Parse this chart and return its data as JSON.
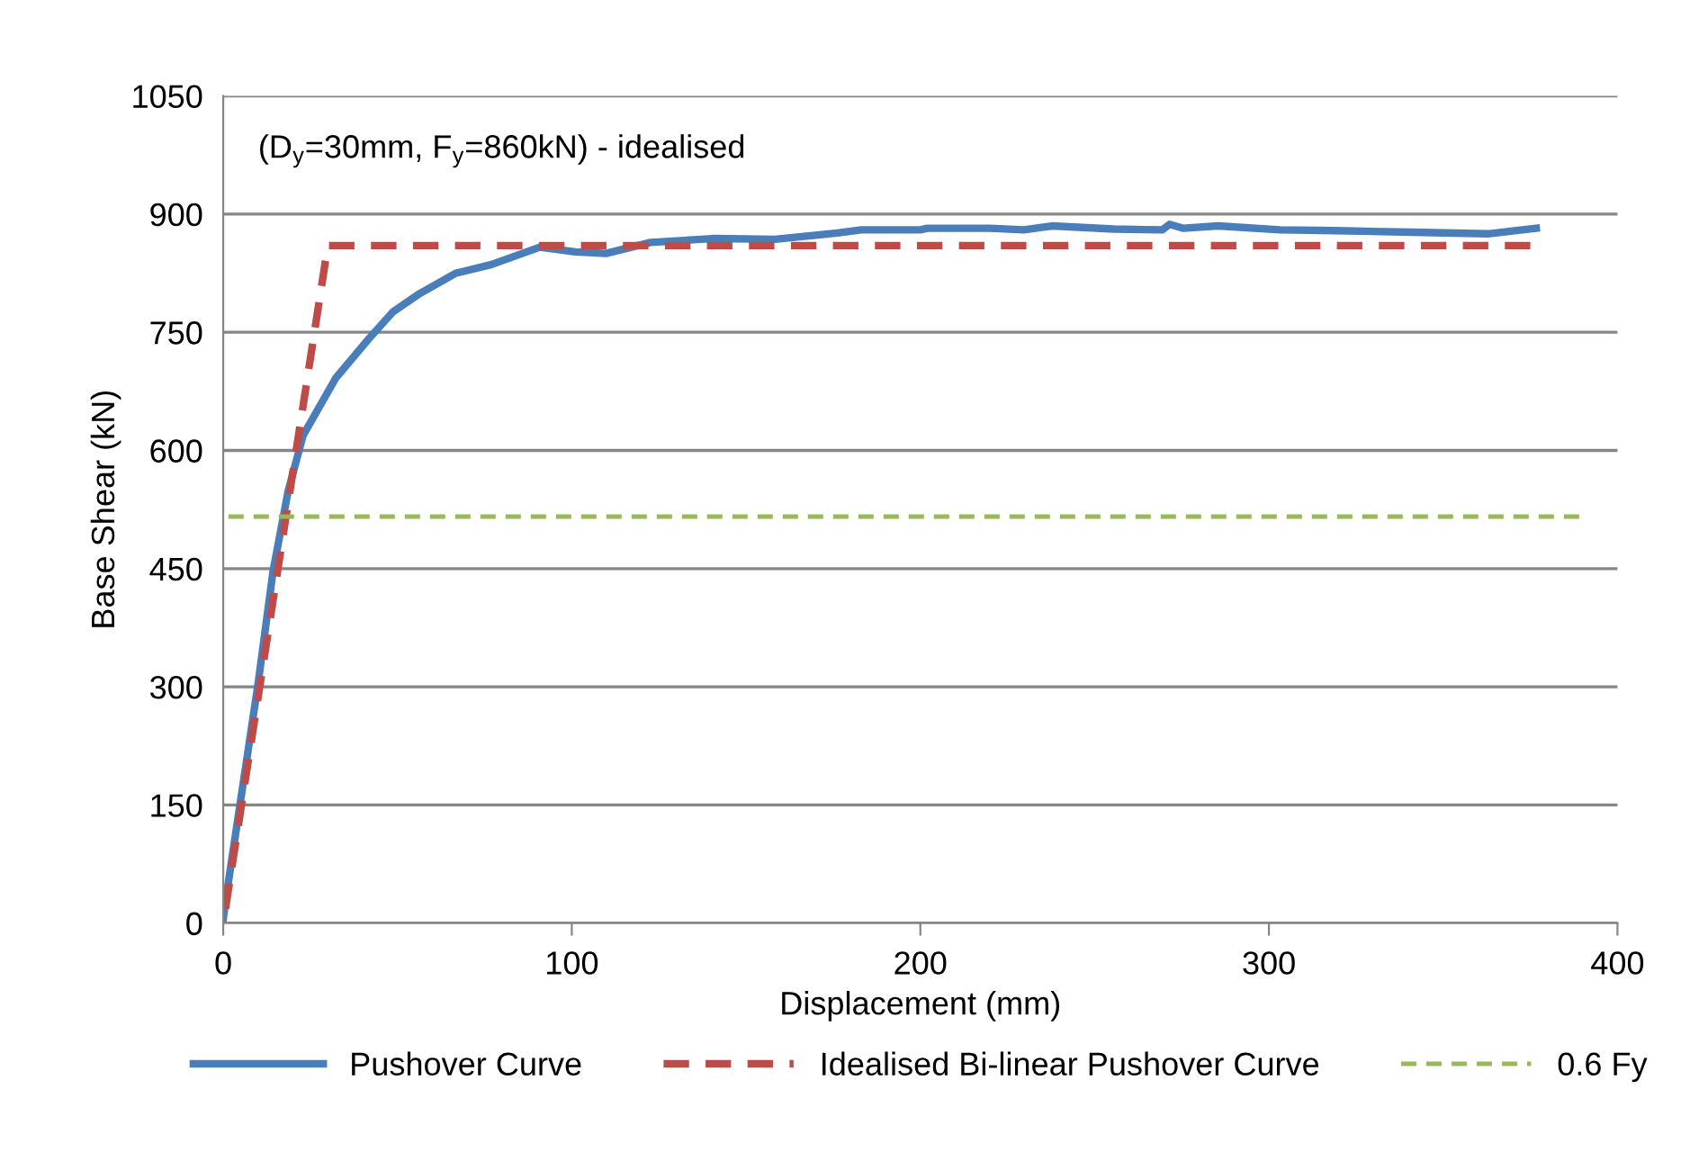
{
  "chart_data": {
    "type": "line",
    "xlabel": "Displacement (mm)",
    "ylabel": "Base Shear (kN)",
    "annotations": [
      "(D$_{y}$=30mm, F$_{y}$=860kN) - idealised"
    ],
    "series": [
      {
        "name": "Pushover Curve",
        "color": "#4a7ebb",
        "line_style": "solid",
        "x": [
          0,
          0.5,
          10,
          14.3,
          18.6,
          22.9,
          32.3,
          41.8,
          48.7,
          56.3,
          66.7,
          77,
          90.8,
          101,
          109.8,
          122.6,
          140.4,
          158.3,
          176.2,
          183.1,
          200,
          202,
          219.9,
          229.7,
          237.7,
          255.5,
          269.4,
          271.5,
          275.5,
          285.4,
          303.2,
          319,
          341,
          362.8,
          368.8,
          376.7
        ],
        "values": [
          5,
          23,
          304,
          447,
          548,
          619,
          692,
          742,
          776,
          799,
          825,
          836,
          858,
          852,
          850,
          864,
          869,
          868,
          876,
          880,
          880,
          882,
          882,
          880,
          885,
          881,
          880,
          887,
          882,
          885,
          880,
          879,
          877,
          875,
          878,
          882
        ]
      },
      {
        "name": "Idealised Bi-linear Pushover Curve",
        "color": "#be4b48",
        "line_style": "dashed",
        "x": [
          0,
          30,
          375
        ],
        "values": [
          0,
          860,
          860
        ]
      },
      {
        "name": "0.6 Fy",
        "color": "#98b954",
        "line_style": "dashed",
        "x": [
          0,
          389
        ],
        "values": [
          516,
          516
        ]
      }
    ],
    "xlim": [
      0,
      400
    ],
    "xticks": [
      0,
      100,
      200,
      300,
      400
    ],
    "ylim": [
      0,
      1050
    ],
    "yticks": [
      0,
      150,
      300,
      450,
      600,
      750,
      900,
      1050
    ],
    "grid": "y",
    "legend": "bottom",
    "marker": "none"
  }
}
